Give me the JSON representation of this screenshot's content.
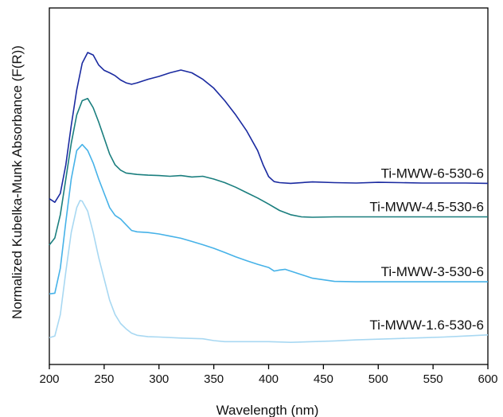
{
  "chart_data": {
    "type": "line",
    "xlabel": "Wavelength (nm)",
    "ylabel": "Normalized Kubelka-Munk Absorbance (F(R))",
    "xlim": [
      200,
      600
    ],
    "ylim": [
      0,
      1
    ],
    "x_ticks": [
      200,
      250,
      300,
      350,
      400,
      450,
      500,
      550,
      600
    ],
    "y_ticks_shown": false,
    "grid": false,
    "legend": "none",
    "series": [
      {
        "name": "Ti-MWW-6-530-6",
        "color": "#1a2aa0",
        "points": [
          [
            200,
            0.465
          ],
          [
            205,
            0.455
          ],
          [
            210,
            0.48
          ],
          [
            215,
            0.56
          ],
          [
            220,
            0.67
          ],
          [
            225,
            0.77
          ],
          [
            230,
            0.845
          ],
          [
            235,
            0.875
          ],
          [
            240,
            0.868
          ],
          [
            245,
            0.84
          ],
          [
            250,
            0.825
          ],
          [
            255,
            0.818
          ],
          [
            260,
            0.81
          ],
          [
            265,
            0.798
          ],
          [
            270,
            0.79
          ],
          [
            275,
            0.786
          ],
          [
            280,
            0.79
          ],
          [
            290,
            0.8
          ],
          [
            300,
            0.808
          ],
          [
            310,
            0.818
          ],
          [
            320,
            0.826
          ],
          [
            330,
            0.818
          ],
          [
            340,
            0.8
          ],
          [
            350,
            0.775
          ],
          [
            360,
            0.74
          ],
          [
            370,
            0.7
          ],
          [
            380,
            0.655
          ],
          [
            390,
            0.6
          ],
          [
            395,
            0.56
          ],
          [
            400,
            0.527
          ],
          [
            405,
            0.513
          ],
          [
            410,
            0.51
          ],
          [
            420,
            0.508
          ],
          [
            440,
            0.512
          ],
          [
            460,
            0.51
          ],
          [
            480,
            0.509
          ],
          [
            500,
            0.511
          ],
          [
            520,
            0.51
          ],
          [
            540,
            0.509
          ],
          [
            560,
            0.509
          ],
          [
            580,
            0.509
          ],
          [
            600,
            0.508
          ]
        ]
      },
      {
        "name": "Ti-MWW-4.5-530-6",
        "color": "#1a7e7e",
        "points": [
          [
            200,
            0.335
          ],
          [
            205,
            0.355
          ],
          [
            210,
            0.42
          ],
          [
            215,
            0.52
          ],
          [
            220,
            0.62
          ],
          [
            225,
            0.7
          ],
          [
            230,
            0.74
          ],
          [
            235,
            0.746
          ],
          [
            240,
            0.72
          ],
          [
            245,
            0.68
          ],
          [
            250,
            0.635
          ],
          [
            255,
            0.59
          ],
          [
            260,
            0.56
          ],
          [
            265,
            0.545
          ],
          [
            270,
            0.537
          ],
          [
            280,
            0.533
          ],
          [
            290,
            0.531
          ],
          [
            300,
            0.53
          ],
          [
            310,
            0.528
          ],
          [
            320,
            0.53
          ],
          [
            330,
            0.526
          ],
          [
            340,
            0.528
          ],
          [
            350,
            0.52
          ],
          [
            360,
            0.51
          ],
          [
            370,
            0.497
          ],
          [
            380,
            0.482
          ],
          [
            390,
            0.467
          ],
          [
            400,
            0.45
          ],
          [
            410,
            0.432
          ],
          [
            420,
            0.42
          ],
          [
            430,
            0.414
          ],
          [
            440,
            0.413
          ],
          [
            460,
            0.414
          ],
          [
            480,
            0.414
          ],
          [
            500,
            0.414
          ],
          [
            520,
            0.414
          ],
          [
            540,
            0.414
          ],
          [
            560,
            0.414
          ],
          [
            580,
            0.414
          ],
          [
            600,
            0.414
          ]
        ]
      },
      {
        "name": "Ti-MWW-3-530-6",
        "color": "#46b2e8",
        "points": [
          [
            200,
            0.198
          ],
          [
            205,
            0.2
          ],
          [
            210,
            0.27
          ],
          [
            215,
            0.4
          ],
          [
            220,
            0.52
          ],
          [
            225,
            0.6
          ],
          [
            230,
            0.617
          ],
          [
            235,
            0.6
          ],
          [
            240,
            0.565
          ],
          [
            245,
            0.52
          ],
          [
            250,
            0.48
          ],
          [
            255,
            0.44
          ],
          [
            260,
            0.418
          ],
          [
            265,
            0.408
          ],
          [
            270,
            0.392
          ],
          [
            275,
            0.376
          ],
          [
            280,
            0.372
          ],
          [
            290,
            0.37
          ],
          [
            300,
            0.366
          ],
          [
            310,
            0.36
          ],
          [
            320,
            0.354
          ],
          [
            330,
            0.345
          ],
          [
            340,
            0.336
          ],
          [
            350,
            0.326
          ],
          [
            360,
            0.314
          ],
          [
            370,
            0.302
          ],
          [
            380,
            0.291
          ],
          [
            390,
            0.281
          ],
          [
            400,
            0.272
          ],
          [
            405,
            0.262
          ],
          [
            410,
            0.265
          ],
          [
            415,
            0.267
          ],
          [
            420,
            0.262
          ],
          [
            430,
            0.252
          ],
          [
            440,
            0.242
          ],
          [
            460,
            0.233
          ],
          [
            480,
            0.232
          ],
          [
            500,
            0.232
          ],
          [
            520,
            0.232
          ],
          [
            540,
            0.232
          ],
          [
            560,
            0.232
          ],
          [
            580,
            0.232
          ],
          [
            600,
            0.232
          ]
        ]
      },
      {
        "name": "Ti-MWW-1.6-530-6",
        "color": "#a8d8f2",
        "points": [
          [
            200,
            0.075
          ],
          [
            205,
            0.08
          ],
          [
            210,
            0.14
          ],
          [
            215,
            0.26
          ],
          [
            220,
            0.37
          ],
          [
            225,
            0.44
          ],
          [
            228,
            0.46
          ],
          [
            230,
            0.458
          ],
          [
            235,
            0.43
          ],
          [
            240,
            0.37
          ],
          [
            245,
            0.3
          ],
          [
            250,
            0.24
          ],
          [
            255,
            0.18
          ],
          [
            260,
            0.14
          ],
          [
            265,
            0.115
          ],
          [
            270,
            0.1
          ],
          [
            275,
            0.088
          ],
          [
            280,
            0.082
          ],
          [
            290,
            0.078
          ],
          [
            300,
            0.077
          ],
          [
            320,
            0.074
          ],
          [
            340,
            0.072
          ],
          [
            350,
            0.067
          ],
          [
            360,
            0.064
          ],
          [
            380,
            0.064
          ],
          [
            400,
            0.064
          ],
          [
            420,
            0.062
          ],
          [
            440,
            0.064
          ],
          [
            460,
            0.066
          ],
          [
            480,
            0.069
          ],
          [
            500,
            0.071
          ],
          [
            520,
            0.073
          ],
          [
            540,
            0.075
          ],
          [
            560,
            0.077
          ],
          [
            580,
            0.08
          ],
          [
            600,
            0.083
          ]
        ]
      }
    ]
  }
}
